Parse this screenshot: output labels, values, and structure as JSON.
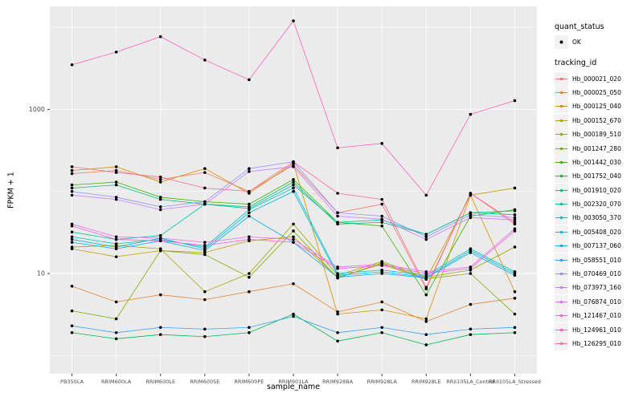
{
  "figure": {
    "background": "#FFFFFF"
  },
  "chart_data": {
    "type": "line",
    "title": "",
    "xlabel": "sample_name",
    "ylabel": "FPKM + 1",
    "y_scale": "log10",
    "ylim": [
      0.6,
      18000
    ],
    "y_major_ticks": [
      10,
      1000
    ],
    "y_major_tick_labels": [
      "10",
      "1000"
    ],
    "y_minor_ticks": [
      1,
      100,
      10000
    ],
    "grid": true,
    "legend_position": "right",
    "panel_background": "#EBEBEB",
    "grid_color": "#FFFFFF",
    "tick_label_color": "#4D4D4D",
    "point_marker": {
      "shape": "circle",
      "color": "#000000"
    },
    "categories": [
      "PB350LA",
      "RRIM600LA",
      "RRIM600LE",
      "RRIM600SE",
      "RRIM600PE",
      "RRIM901LA",
      "RRIM928BA",
      "RRIM928LA",
      "RRIM928LE",
      "RRII105LA_Control",
      "RRII105LA_Stressed"
    ],
    "series": [
      {
        "name": "Hb_000021_020",
        "color": "#F8766D",
        "values": [
          165,
          180,
          140,
          170,
          100,
          210,
          55,
          70,
          6.5,
          95,
          40
        ]
      },
      {
        "name": "Hb_000025_050",
        "color": "#EA8331",
        "values": [
          7,
          4.5,
          5.5,
          4.8,
          6,
          7.5,
          3.4,
          4.5,
          2.6,
          4.2,
          5
        ]
      },
      {
        "name": "Hb_000125_040",
        "color": "#D89000",
        "values": [
          180,
          200,
          130,
          190,
          95,
          220,
          3.2,
          3.6,
          2.8,
          90,
          6
        ]
      },
      {
        "name": "Hb_000152_670",
        "color": "#C09B00",
        "values": [
          20,
          16,
          19,
          18,
          25,
          28,
          9,
          13,
          8.5,
          90,
          110
        ]
      },
      {
        "name": "Hb_000189_510",
        "color": "#A3A500",
        "values": [
          21,
          22,
          20,
          6,
          10,
          40,
          9.5,
          14,
          9,
          11,
          21
        ]
      },
      {
        "name": "Hb_001247_280",
        "color": "#7CAE00",
        "values": [
          3.5,
          2.8,
          19,
          17,
          9,
          33,
          8.8,
          13.5,
          8.6,
          10,
          3.2
        ]
      },
      {
        "name": "Hb_001442_030",
        "color": "#39B600",
        "values": [
          120,
          130,
          85,
          75,
          70,
          140,
          42,
          38,
          5.5,
          50,
          60
        ]
      },
      {
        "name": "Hb_001752_040",
        "color": "#00BB4E",
        "values": [
          1.9,
          1.6,
          1.8,
          1.7,
          1.9,
          3.2,
          1.5,
          1.9,
          1.35,
          1.8,
          1.9
        ]
      },
      {
        "name": "Hb_001910_020",
        "color": "#00BF7D",
        "values": [
          110,
          120,
          80,
          70,
          65,
          130,
          40,
          42,
          30,
          55,
          58
        ]
      },
      {
        "name": "Hb_002320_070",
        "color": "#00C1A3",
        "values": [
          32,
          26,
          29,
          70,
          62,
          120,
          42,
          45,
          30,
          55,
          52
        ]
      },
      {
        "name": "Hb_003050_370",
        "color": "#00BFC4",
        "values": [
          28,
          23,
          26,
          21,
          60,
          110,
          10,
          11,
          9.5,
          20,
          10.5
        ]
      },
      {
        "name": "Hb_005408_020",
        "color": "#00BAE0",
        "values": [
          26,
          21,
          27,
          20,
          55,
          100,
          9.5,
          10.5,
          9,
          19,
          10
        ]
      },
      {
        "name": "Hb_007137_060",
        "color": "#00B0F6",
        "values": [
          24,
          20,
          25,
          19,
          50,
          24,
          9,
          10,
          8.8,
          18,
          9.5
        ]
      },
      {
        "name": "Hb_058551_010",
        "color": "#35A2FF",
        "values": [
          2.3,
          1.9,
          2.2,
          2.1,
          2.2,
          3.0,
          1.9,
          2.2,
          1.8,
          2.1,
          2.2
        ]
      },
      {
        "name": "Hb_070469_010",
        "color": "#9590FF",
        "values": [
          100,
          85,
          65,
          75,
          190,
          230,
          55,
          50,
          28,
          52,
          48
        ]
      },
      {
        "name": "Hb_073973_160",
        "color": "#C77CFF",
        "values": [
          90,
          80,
          60,
          70,
          175,
          200,
          50,
          46,
          26,
          48,
          45
        ]
      },
      {
        "name": "Hb_076874_010",
        "color": "#E76BF3",
        "values": [
          40,
          28,
          27,
          24,
          28,
          26,
          12,
          13,
          10.5,
          12,
          35
        ]
      },
      {
        "name": "Hb_121467_010",
        "color": "#FA62DB",
        "values": [
          38,
          26,
          25,
          22,
          26,
          24,
          11.5,
          12.5,
          10,
          11.5,
          33
        ]
      },
      {
        "name": "Hb_124961_010",
        "color": "#FF62BC",
        "values": [
          3500,
          5000,
          7700,
          4000,
          2300,
          12000,
          340,
          385,
          90,
          870,
          1280
        ]
      },
      {
        "name": "Hb_126295_010",
        "color": "#FF6A98",
        "values": [
          200,
          170,
          150,
          110,
          100,
          230,
          95,
          80,
          6.8,
          95,
          42
        ]
      }
    ],
    "legend": {
      "shape_title": "quant_status",
      "shape_items": [
        {
          "label": "OK",
          "marker": "point",
          "color": "#000000"
        }
      ],
      "color_title": "tracking_id"
    }
  }
}
